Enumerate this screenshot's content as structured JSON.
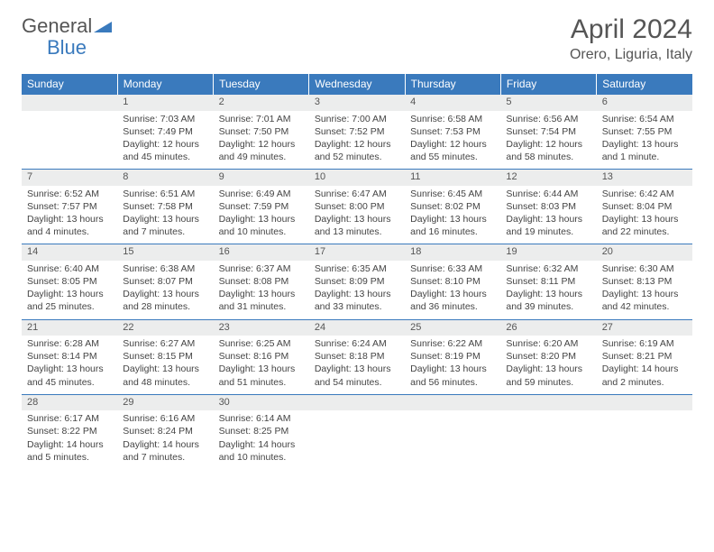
{
  "logo": {
    "part1": "General",
    "part2": "Blue"
  },
  "title": "April 2024",
  "location": "Orero, Liguria, Italy",
  "colors": {
    "accent": "#3a7abd",
    "header_bg": "#3a7abd",
    "header_fg": "#ffffff",
    "daynum_bg": "#eceded",
    "border": "#3a7abd",
    "text": "#444444",
    "title_text": "#555555",
    "bg": "#ffffff"
  },
  "typography": {
    "title_size_pt": 22,
    "location_size_pt": 12,
    "weekday_size_pt": 9,
    "daynum_size_pt": 8,
    "cell_size_pt": 8
  },
  "layout": {
    "columns": 7,
    "rows": 5,
    "start_column": 1
  },
  "weekdays": [
    "Sunday",
    "Monday",
    "Tuesday",
    "Wednesday",
    "Thursday",
    "Friday",
    "Saturday"
  ],
  "days": [
    {
      "n": 1,
      "sunrise": "7:03 AM",
      "sunset": "7:49 PM",
      "daylight": "12 hours and 45 minutes."
    },
    {
      "n": 2,
      "sunrise": "7:01 AM",
      "sunset": "7:50 PM",
      "daylight": "12 hours and 49 minutes."
    },
    {
      "n": 3,
      "sunrise": "7:00 AM",
      "sunset": "7:52 PM",
      "daylight": "12 hours and 52 minutes."
    },
    {
      "n": 4,
      "sunrise": "6:58 AM",
      "sunset": "7:53 PM",
      "daylight": "12 hours and 55 minutes."
    },
    {
      "n": 5,
      "sunrise": "6:56 AM",
      "sunset": "7:54 PM",
      "daylight": "12 hours and 58 minutes."
    },
    {
      "n": 6,
      "sunrise": "6:54 AM",
      "sunset": "7:55 PM",
      "daylight": "13 hours and 1 minute."
    },
    {
      "n": 7,
      "sunrise": "6:52 AM",
      "sunset": "7:57 PM",
      "daylight": "13 hours and 4 minutes."
    },
    {
      "n": 8,
      "sunrise": "6:51 AM",
      "sunset": "7:58 PM",
      "daylight": "13 hours and 7 minutes."
    },
    {
      "n": 9,
      "sunrise": "6:49 AM",
      "sunset": "7:59 PM",
      "daylight": "13 hours and 10 minutes."
    },
    {
      "n": 10,
      "sunrise": "6:47 AM",
      "sunset": "8:00 PM",
      "daylight": "13 hours and 13 minutes."
    },
    {
      "n": 11,
      "sunrise": "6:45 AM",
      "sunset": "8:02 PM",
      "daylight": "13 hours and 16 minutes."
    },
    {
      "n": 12,
      "sunrise": "6:44 AM",
      "sunset": "8:03 PM",
      "daylight": "13 hours and 19 minutes."
    },
    {
      "n": 13,
      "sunrise": "6:42 AM",
      "sunset": "8:04 PM",
      "daylight": "13 hours and 22 minutes."
    },
    {
      "n": 14,
      "sunrise": "6:40 AM",
      "sunset": "8:05 PM",
      "daylight": "13 hours and 25 minutes."
    },
    {
      "n": 15,
      "sunrise": "6:38 AM",
      "sunset": "8:07 PM",
      "daylight": "13 hours and 28 minutes."
    },
    {
      "n": 16,
      "sunrise": "6:37 AM",
      "sunset": "8:08 PM",
      "daylight": "13 hours and 31 minutes."
    },
    {
      "n": 17,
      "sunrise": "6:35 AM",
      "sunset": "8:09 PM",
      "daylight": "13 hours and 33 minutes."
    },
    {
      "n": 18,
      "sunrise": "6:33 AM",
      "sunset": "8:10 PM",
      "daylight": "13 hours and 36 minutes."
    },
    {
      "n": 19,
      "sunrise": "6:32 AM",
      "sunset": "8:11 PM",
      "daylight": "13 hours and 39 minutes."
    },
    {
      "n": 20,
      "sunrise": "6:30 AM",
      "sunset": "8:13 PM",
      "daylight": "13 hours and 42 minutes."
    },
    {
      "n": 21,
      "sunrise": "6:28 AM",
      "sunset": "8:14 PM",
      "daylight": "13 hours and 45 minutes."
    },
    {
      "n": 22,
      "sunrise": "6:27 AM",
      "sunset": "8:15 PM",
      "daylight": "13 hours and 48 minutes."
    },
    {
      "n": 23,
      "sunrise": "6:25 AM",
      "sunset": "8:16 PM",
      "daylight": "13 hours and 51 minutes."
    },
    {
      "n": 24,
      "sunrise": "6:24 AM",
      "sunset": "8:18 PM",
      "daylight": "13 hours and 54 minutes."
    },
    {
      "n": 25,
      "sunrise": "6:22 AM",
      "sunset": "8:19 PM",
      "daylight": "13 hours and 56 minutes."
    },
    {
      "n": 26,
      "sunrise": "6:20 AM",
      "sunset": "8:20 PM",
      "daylight": "13 hours and 59 minutes."
    },
    {
      "n": 27,
      "sunrise": "6:19 AM",
      "sunset": "8:21 PM",
      "daylight": "14 hours and 2 minutes."
    },
    {
      "n": 28,
      "sunrise": "6:17 AM",
      "sunset": "8:22 PM",
      "daylight": "14 hours and 5 minutes."
    },
    {
      "n": 29,
      "sunrise": "6:16 AM",
      "sunset": "8:24 PM",
      "daylight": "14 hours and 7 minutes."
    },
    {
      "n": 30,
      "sunrise": "6:14 AM",
      "sunset": "8:25 PM",
      "daylight": "14 hours and 10 minutes."
    }
  ],
  "labels": {
    "sunrise": "Sunrise:",
    "sunset": "Sunset:",
    "daylight": "Daylight:"
  }
}
